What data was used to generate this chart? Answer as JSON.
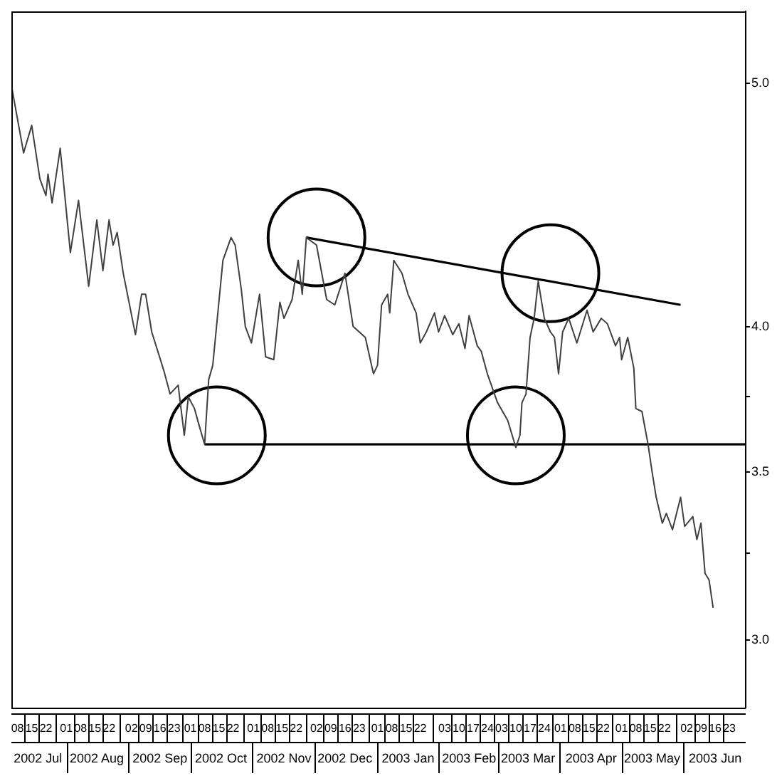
{
  "chart_data": {
    "type": "line",
    "log": "y",
    "grid": false,
    "legend": false,
    "xlim": [
      "2002-07-05",
      "2003-07-01"
    ],
    "xticks": [
      {
        "value": "2002-07-08",
        "label": "08"
      },
      {
        "value": "2002-07-15",
        "label": "15"
      },
      {
        "value": "2002-07-22",
        "label": "22"
      },
      {
        "value": "2002-08-01",
        "label": "01"
      },
      {
        "value": "2002-08-08",
        "label": "08"
      },
      {
        "value": "2002-08-15",
        "label": "15"
      },
      {
        "value": "2002-08-22",
        "label": "22"
      },
      {
        "value": "2002-09-02",
        "label": "02"
      },
      {
        "value": "2002-09-09",
        "label": "09"
      },
      {
        "value": "2002-09-16",
        "label": "16"
      },
      {
        "value": "2002-09-23",
        "label": "23"
      },
      {
        "value": "2002-10-01",
        "label": "01"
      },
      {
        "value": "2002-10-08",
        "label": "08"
      },
      {
        "value": "2002-10-15",
        "label": "15"
      },
      {
        "value": "2002-10-22",
        "label": "22"
      },
      {
        "value": "2002-11-01",
        "label": "01"
      },
      {
        "value": "2002-11-08",
        "label": "08"
      },
      {
        "value": "2002-11-15",
        "label": "15"
      },
      {
        "value": "2002-11-22",
        "label": "22"
      },
      {
        "value": "2002-12-02",
        "label": "02"
      },
      {
        "value": "2002-12-09",
        "label": "09"
      },
      {
        "value": "2002-12-16",
        "label": "16"
      },
      {
        "value": "2002-12-23",
        "label": "23"
      },
      {
        "value": "2003-01-01",
        "label": "01"
      },
      {
        "value": "2003-01-08",
        "label": "08"
      },
      {
        "value": "2003-01-15",
        "label": "15"
      },
      {
        "value": "2003-01-22",
        "label": "22"
      },
      {
        "value": "2003-02-03",
        "label": "03"
      },
      {
        "value": "2003-02-10",
        "label": "10"
      },
      {
        "value": "2003-02-17",
        "label": "17"
      },
      {
        "value": "2003-02-24",
        "label": "24"
      },
      {
        "value": "2003-03-03",
        "label": "03"
      },
      {
        "value": "2003-03-10",
        "label": "10"
      },
      {
        "value": "2003-03-17",
        "label": "17"
      },
      {
        "value": "2003-03-24",
        "label": "24"
      },
      {
        "value": "2003-04-01",
        "label": "01"
      },
      {
        "value": "2003-04-08",
        "label": "08"
      },
      {
        "value": "2003-04-15",
        "label": "15"
      },
      {
        "value": "2003-04-22",
        "label": "22"
      },
      {
        "value": "2003-05-01",
        "label": "01"
      },
      {
        "value": "2003-05-08",
        "label": "08"
      },
      {
        "value": "2003-05-15",
        "label": "15"
      },
      {
        "value": "2003-05-22",
        "label": "22"
      },
      {
        "value": "2003-06-02",
        "label": "02"
      },
      {
        "value": "2003-06-09",
        "label": "09"
      },
      {
        "value": "2003-06-16",
        "label": "16"
      },
      {
        "value": "2003-06-23",
        "label": "23"
      }
    ],
    "x2lim": [
      "2002-07-05",
      "2003-07-01"
    ],
    "x2ticks": [
      {
        "value": "2002-07-18",
        "label": "2002 Jul"
      },
      {
        "value": "2002-08-16",
        "label": "2002 Aug"
      },
      {
        "value": "2002-09-16",
        "label": "2002 Sep"
      },
      {
        "value": "2002-10-16",
        "label": "2002 Oct"
      },
      {
        "value": "2002-11-16",
        "label": "2002 Nov"
      },
      {
        "value": "2002-12-16",
        "label": "2002 Dec"
      },
      {
        "value": "2003-01-16",
        "label": "2003 Jan"
      },
      {
        "value": "2003-02-15",
        "label": "2003 Feb"
      },
      {
        "value": "2003-03-16",
        "label": "2003 Mar"
      },
      {
        "value": "2003-04-16",
        "label": "2003 Apr"
      },
      {
        "value": "2003-05-16",
        "label": "2003 May"
      },
      {
        "value": "2003-06-16",
        "label": "2003 Jun"
      }
    ],
    "ylim": [
      2.82,
      5.34
    ],
    "yticks": [
      {
        "value": 3,
        "label": "3.0"
      },
      {
        "value": 3.25,
        "label": null
      },
      {
        "value": 3.5,
        "label": "3.5"
      },
      {
        "value": 3.75,
        "label": null
      },
      {
        "value": 4,
        "label": "4.0"
      },
      {
        "value": 5,
        "label": "5.0"
      }
    ],
    "series": [
      {
        "type": "line",
        "color": "#404040",
        "x": [
          "2002-07-05",
          "2002-07-10",
          "2002-07-11",
          "2002-07-15",
          "2002-07-19",
          "2002-07-22",
          "2002-07-23",
          "2002-07-25",
          "2002-07-29",
          "2002-08-03",
          "2002-08-07",
          "2002-08-12",
          "2002-08-16",
          "2002-08-19",
          "2002-08-22",
          "2002-08-24",
          "2002-08-26",
          "2002-08-29",
          "2002-09-04",
          "2002-09-07",
          "2002-09-09",
          "2002-09-12",
          "2002-09-18",
          "2002-09-21",
          "2002-09-25",
          "2002-09-28",
          "2002-09-30",
          "2002-10-03",
          "2002-10-05",
          "2002-10-08",
          "2002-10-10",
          "2002-10-12",
          "2002-10-17",
          "2002-10-21",
          "2002-10-23",
          "2002-10-26",
          "2002-10-28",
          "2002-10-31",
          "2002-11-04",
          "2002-11-07",
          "2002-11-11",
          "2002-11-14",
          "2002-11-16",
          "2002-11-20",
          "2002-11-23",
          "2002-11-25",
          "2002-11-27",
          "2002-12-02",
          "2002-12-07",
          "2002-12-11",
          "2002-12-16",
          "2002-12-20",
          "2002-12-26",
          "2002-12-30",
          "2003-01-01",
          "2003-01-03",
          "2003-01-06",
          "2003-01-07",
          "2003-01-09",
          "2003-01-13",
          "2003-01-16",
          "2003-01-20",
          "2003-01-22",
          "2003-01-25",
          "2003-01-29",
          "2003-01-31",
          "2003-02-03",
          "2003-02-07",
          "2003-02-10",
          "2003-02-13",
          "2003-02-15",
          "2003-02-19",
          "2003-02-21",
          "2003-02-24",
          "2003-03-01",
          "2003-03-06",
          "2003-03-10",
          "2003-03-12",
          "2003-03-13",
          "2003-03-15",
          "2003-03-17",
          "2003-03-19",
          "2003-03-21",
          "2003-03-24",
          "2003-03-27",
          "2003-03-29",
          "2003-03-31",
          "2003-04-02",
          "2003-04-05",
          "2003-04-09",
          "2003-04-14",
          "2003-04-17",
          "2003-04-21",
          "2003-04-24",
          "2003-04-28",
          "2003-04-30",
          "2003-05-01",
          "2003-05-04",
          "2003-05-07",
          "2003-05-08",
          "2003-05-11",
          "2003-05-14",
          "2003-05-16",
          "2003-05-18",
          "2003-05-21",
          "2003-05-23",
          "2003-05-26",
          "2003-05-30",
          "2003-06-01",
          "2003-06-05",
          "2003-06-07",
          "2003-06-09",
          "2003-06-11",
          "2003-06-13",
          "2003-06-15"
        ],
        "values": [
          4.99,
          4.74,
          4.69,
          4.81,
          4.58,
          4.51,
          4.6,
          4.48,
          4.71,
          4.28,
          4.49,
          4.15,
          4.41,
          4.21,
          4.41,
          4.31,
          4.36,
          4.2,
          3.97,
          4.12,
          4.12,
          3.98,
          3.84,
          3.76,
          3.79,
          3.62,
          3.75,
          3.71,
          3.66,
          3.59,
          3.81,
          3.86,
          4.25,
          4.34,
          4.31,
          4.14,
          4.0,
          3.94,
          4.12,
          3.89,
          3.88,
          4.09,
          4.03,
          4.1,
          4.25,
          4.12,
          4.34,
          4.31,
          4.1,
          4.08,
          4.2,
          4.0,
          3.96,
          3.83,
          3.86,
          4.08,
          4.12,
          4.05,
          4.25,
          4.2,
          4.12,
          4.05,
          3.94,
          3.98,
          4.05,
          3.98,
          4.04,
          3.97,
          4.01,
          3.92,
          4.04,
          3.93,
          3.91,
          3.83,
          3.73,
          3.67,
          3.58,
          3.62,
          3.73,
          3.76,
          3.96,
          4.03,
          4.17,
          4.03,
          3.98,
          3.96,
          3.83,
          3.98,
          4.03,
          3.94,
          4.06,
          3.98,
          4.03,
          4.01,
          3.93,
          3.96,
          3.88,
          3.96,
          3.85,
          3.71,
          3.7,
          3.59,
          3.5,
          3.42,
          3.34,
          3.37,
          3.32,
          3.42,
          3.33,
          3.36,
          3.29,
          3.34,
          3.19,
          3.17,
          3.09
        ]
      },
      {
        "type": "line",
        "color": "#000000",
        "x": [
          "2002-10-08",
          "2003-07-01"
        ],
        "values": [
          3.59,
          3.59
        ]
      },
      {
        "type": "line",
        "color": "#000000",
        "x": [
          "2002-11-27",
          "2003-05-30"
        ],
        "values": [
          4.34,
          4.08
        ]
      },
      {
        "type": "scatter",
        "marker": "circle",
        "color": "#000000",
        "x": [
          "2002-10-14",
          "2002-12-02",
          "2003-03-10",
          "2003-03-27"
        ],
        "values": [
          3.62,
          4.34,
          3.62,
          4.2
        ]
      }
    ]
  }
}
